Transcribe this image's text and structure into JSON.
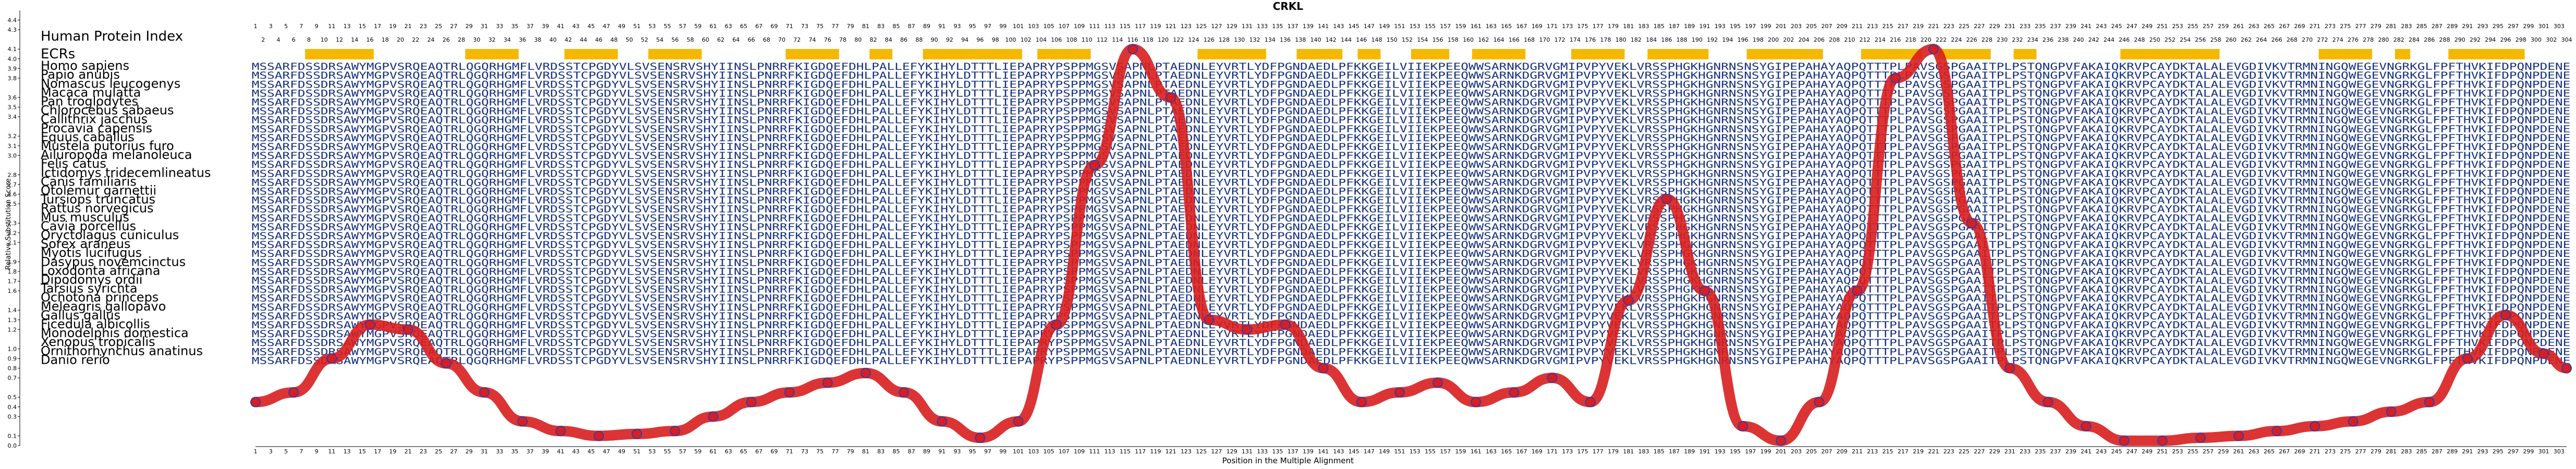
{
  "chart_data": {
    "type": "line",
    "title": "CRKL",
    "xlabel": "Position in the Multiple Alignment",
    "ylabel": "Relative Substitution Score",
    "header_label": "Human Protein Index",
    "ecr_label": "ECRs",
    "xlim": [
      1,
      304
    ],
    "ylim": [
      0.0,
      4.5
    ],
    "y_ticks": [
      "0.0",
      "0.1",
      "0.3",
      "0.4",
      "0.5",
      "0.7",
      "0.8",
      "0.9",
      "1.0",
      "1.2",
      "1.3",
      "1.4",
      "1.6",
      "1.7",
      "1.8",
      "1.9",
      "2.1",
      "2.2",
      "2.3",
      "2.5",
      "2.6",
      "2.7",
      "2.8",
      "3.0",
      "3.1",
      "3.2",
      "3.4",
      "3.5",
      "3.6",
      "3.8",
      "3.9",
      "4.0",
      "4.1",
      "4.3",
      "4.4"
    ],
    "grid": false,
    "line_color": "#d81e1e",
    "marker_edge_color": "#3a3aa8",
    "ecr_color": "#f5b800",
    "ecr_regions": [
      [
        8,
        16
      ],
      [
        29,
        35
      ],
      [
        42,
        48
      ],
      [
        53,
        59
      ],
      [
        71,
        77
      ],
      [
        82,
        84
      ],
      [
        89,
        101
      ],
      [
        104,
        110
      ],
      [
        125,
        133
      ],
      [
        138,
        143
      ],
      [
        146,
        148
      ],
      [
        153,
        157
      ],
      [
        161,
        167
      ],
      [
        174,
        180
      ],
      [
        184,
        191
      ],
      [
        197,
        206
      ],
      [
        212,
        219
      ],
      [
        222,
        228
      ],
      [
        232,
        234
      ],
      [
        246,
        258
      ],
      [
        272,
        278
      ],
      [
        282,
        283
      ],
      [
        289,
        298
      ]
    ],
    "species": [
      "Homo sapiens",
      "Papio anubis",
      "Nomascus leucogenys",
      "Macaca mulatta",
      "Pan troglodytes",
      "Chlorocebus sabaeus",
      "Callithrix jacchus",
      "Procavia capensis",
      "Equus caballus",
      "Mustela putorius furo",
      "Ailuropoda melanoleuca",
      "Felis catus",
      "Ictidomys tridecemlineatus",
      "Canis familiaris",
      "Otolemur garnettii",
      "Tursiops truncatus",
      "Rattus norvegicus",
      "Mus musculus",
      "Cavia porcellus",
      "Oryctolagus cuniculus",
      "Sorex araneus",
      "Myotis lucifugus",
      "Dasypus novemcinctus",
      "Loxodonta africana",
      "Dipodomys ordii",
      "Tarsius syrichta",
      "Ochotona princeps",
      "Meleagris gallopavo",
      "Gallus gallus",
      "Ficedula albicollis",
      "Monodelphis domestica",
      "Xenopus tropicalis",
      "Ornithorhynchus anatinus",
      "Danio rerio"
    ],
    "sequence": "MSSARFDSSDRSAWYMGPVSRQEAQTRLQGQRHGMFLVRDSSTCPGDYVLSVSENSRVSHYIINSLPNRRFKIGDQEFDHLPALLEFYKIHYLDTTTLIEPAPRYPSPPMGSVSAPNLPTAEDNLEYVRTLYDFPGNDAEDLPFKKGEILVIIEKPEEQWWSARNKDGRVGMIPVPYVEKLVRSSPHGKHGNRNSNSYGIPEPAHAYAQPQTTTPLPAVSGSPGAAITPLPSTQNGPVFAKAIQKRVPCAYDKTALALEVGDIVKVTRMNINGQWEGEVNGRKGLFPFTHVKIFDPQNPDENE",
    "x": [
      1,
      6,
      11,
      16,
      21,
      26,
      31,
      36,
      41,
      46,
      51,
      56,
      61,
      66,
      71,
      76,
      81,
      86,
      91,
      96,
      101,
      106,
      111,
      116,
      121,
      126,
      131,
      136,
      141,
      146,
      151,
      156,
      161,
      166,
      171,
      176,
      181,
      186,
      191,
      196,
      201,
      206,
      211,
      216,
      221,
      226,
      231,
      236,
      241,
      246,
      251,
      256,
      261,
      266,
      271,
      276,
      281,
      286,
      291,
      296,
      301,
      304
    ],
    "y": [
      0.45,
      0.55,
      0.9,
      1.25,
      1.2,
      0.85,
      0.55,
      0.25,
      0.15,
      0.1,
      0.12,
      0.15,
      0.3,
      0.45,
      0.55,
      0.65,
      0.75,
      0.55,
      0.25,
      0.08,
      0.25,
      1.25,
      2.9,
      4.1,
      3.6,
      1.3,
      1.2,
      1.25,
      0.8,
      0.45,
      0.55,
      0.65,
      0.45,
      0.55,
      0.7,
      0.45,
      1.5,
      2.55,
      1.6,
      0.2,
      0.05,
      0.45,
      1.6,
      3.8,
      4.1,
      2.3,
      0.8,
      0.45,
      0.2,
      0.05,
      0.05,
      0.08,
      0.1,
      0.15,
      0.2,
      0.25,
      0.35,
      0.45,
      0.9,
      1.35,
      0.95,
      0.8
    ]
  }
}
